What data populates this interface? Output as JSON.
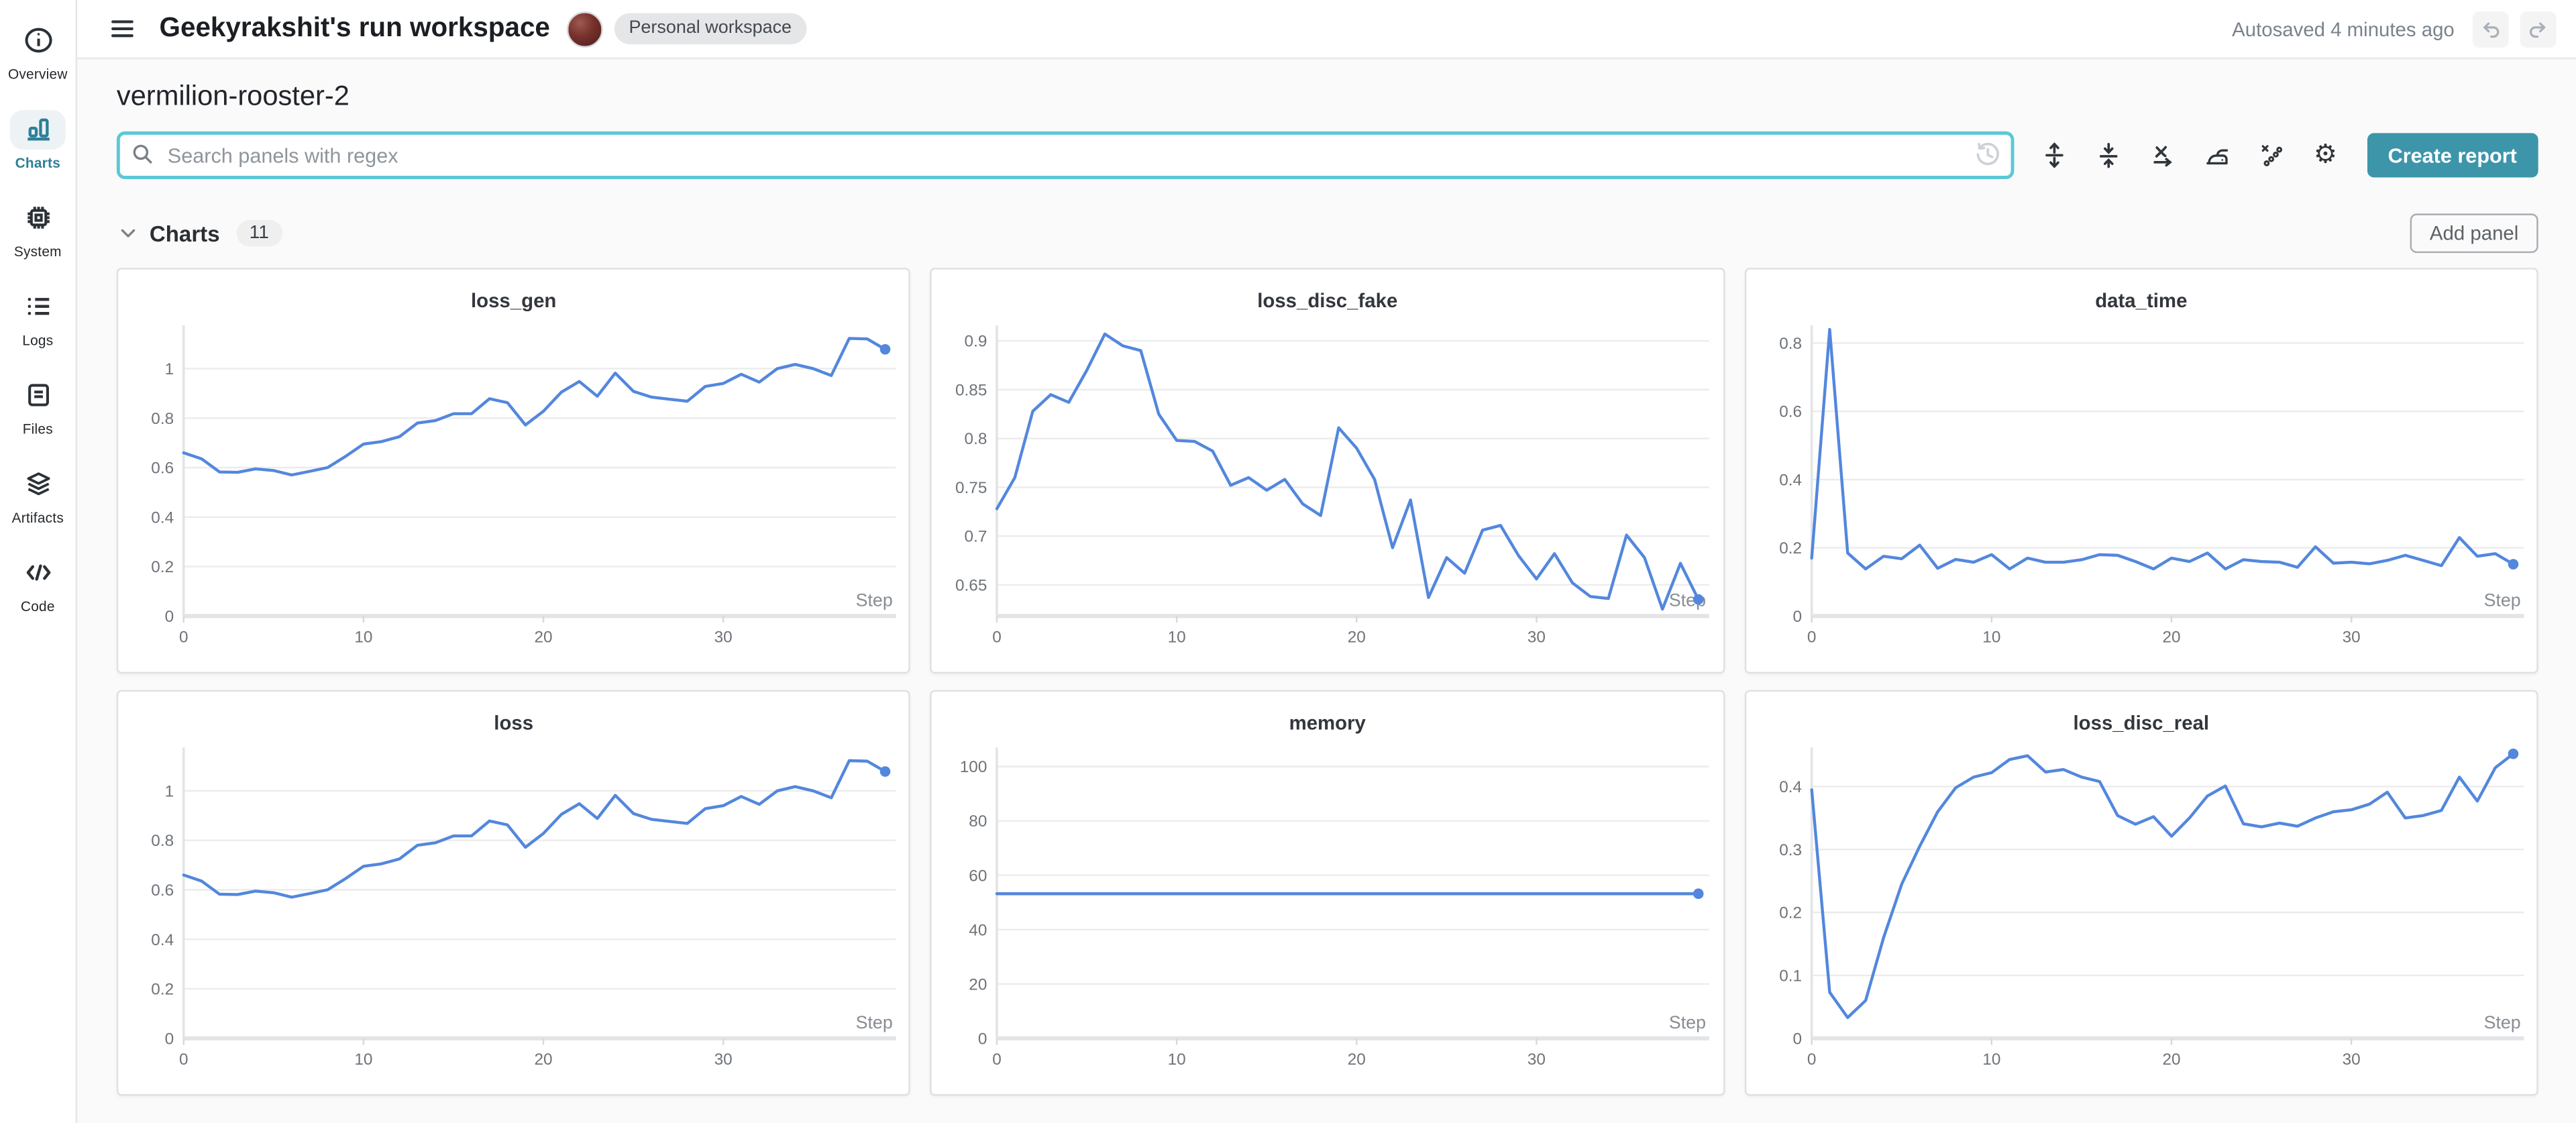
{
  "header": {
    "title": "Geekyrakshit's run workspace",
    "workspace_badge": "Personal workspace",
    "autosave_status": "Autosaved 4 minutes ago"
  },
  "sidebar": {
    "items": [
      {
        "label": "Overview",
        "icon": "info-icon",
        "active": false
      },
      {
        "label": "Charts",
        "icon": "bar-chart-icon",
        "active": true
      },
      {
        "label": "System",
        "icon": "cpu-chip-icon",
        "active": false
      },
      {
        "label": "Logs",
        "icon": "list-icon",
        "active": false
      },
      {
        "label": "Files",
        "icon": "document-icon",
        "active": false
      },
      {
        "label": "Artifacts",
        "icon": "layers-icon",
        "active": false
      },
      {
        "label": "Code",
        "icon": "code-icon",
        "active": false
      }
    ]
  },
  "run": {
    "name": "vermilion-rooster-2"
  },
  "search": {
    "placeholder": "Search panels with regex",
    "history_icon": "clock-history-icon"
  },
  "toolbar": {
    "icons": [
      "expand-vertical-icon",
      "collapse-vertical-icon",
      "x-axis-icon",
      "smoothing-iron-icon",
      "outliers-icon",
      "settings-gear-icon"
    ],
    "create_report_label": "Create report"
  },
  "charts_section": {
    "title": "Charts",
    "count": "11",
    "add_panel_label": "Add panel"
  },
  "colors": {
    "accent_teal": "#3d95aa",
    "focus_teal": "#5bc8d5",
    "line_blue": "#5387dd",
    "active_nav_teal": "#2d7f98"
  },
  "chart_data": [
    {
      "type": "line",
      "title": "loss_gen",
      "xlabel": "Step",
      "xlim": [
        0,
        39.6
      ],
      "xstep": 1,
      "ylim": [
        0,
        1.175
      ],
      "xticks": [
        {
          "v": 0,
          "l": "0"
        },
        {
          "v": 10,
          "l": "10"
        },
        {
          "v": 20,
          "l": "20"
        },
        {
          "v": 30,
          "l": "30"
        }
      ],
      "yticks": [
        {
          "v": 0,
          "l": "0"
        },
        {
          "v": 0.2,
          "l": "0.2"
        },
        {
          "v": 0.4,
          "l": "0.4"
        },
        {
          "v": 0.6,
          "l": "0.6"
        },
        {
          "v": 0.8,
          "l": "0.8"
        },
        {
          "v": 1,
          "l": "1"
        }
      ],
      "values": [
        0.66,
        0.635,
        0.582,
        0.581,
        0.595,
        0.588,
        0.57,
        0.585,
        0.6,
        0.645,
        0.695,
        0.705,
        0.725,
        0.78,
        0.79,
        0.818,
        0.818,
        0.878,
        0.862,
        0.772,
        0.828,
        0.905,
        0.948,
        0.888,
        0.982,
        0.908,
        0.885,
        0.876,
        0.868,
        0.928,
        0.94,
        0.977,
        0.945,
        1.0,
        1.017,
        1.0,
        0.972,
        1.122,
        1.12,
        1.078
      ]
    },
    {
      "type": "line",
      "title": "loss_disc_fake",
      "xlabel": "Step",
      "xlim": [
        0,
        39.6
      ],
      "xstep": 1,
      "ylim": [
        0.618,
        0.916
      ],
      "xticks": [
        {
          "v": 0,
          "l": "0"
        },
        {
          "v": 10,
          "l": "10"
        },
        {
          "v": 20,
          "l": "20"
        },
        {
          "v": 30,
          "l": "30"
        }
      ],
      "yticks": [
        {
          "v": 0.65,
          "l": "0.65"
        },
        {
          "v": 0.7,
          "l": "0.7"
        },
        {
          "v": 0.75,
          "l": "0.75"
        },
        {
          "v": 0.8,
          "l": "0.8"
        },
        {
          "v": 0.85,
          "l": "0.85"
        },
        {
          "v": 0.9,
          "l": "0.9"
        }
      ],
      "values": [
        0.728,
        0.76,
        0.828,
        0.845,
        0.837,
        0.87,
        0.907,
        0.895,
        0.89,
        0.825,
        0.798,
        0.797,
        0.787,
        0.752,
        0.76,
        0.747,
        0.758,
        0.733,
        0.721,
        0.811,
        0.79,
        0.758,
        0.688,
        0.737,
        0.637,
        0.678,
        0.662,
        0.706,
        0.711,
        0.68,
        0.656,
        0.682,
        0.652,
        0.638,
        0.636,
        0.701,
        0.678,
        0.625,
        0.672,
        0.635
      ]
    },
    {
      "type": "line",
      "title": "data_time",
      "xlabel": "Step",
      "xlim": [
        0,
        39.6
      ],
      "xstep": 1,
      "ylim": [
        0,
        0.852
      ],
      "xticks": [
        {
          "v": 0,
          "l": "0"
        },
        {
          "v": 10,
          "l": "10"
        },
        {
          "v": 20,
          "l": "20"
        },
        {
          "v": 30,
          "l": "30"
        }
      ],
      "yticks": [
        {
          "v": 0,
          "l": "0"
        },
        {
          "v": 0.2,
          "l": "0.2"
        },
        {
          "v": 0.4,
          "l": "0.4"
        },
        {
          "v": 0.6,
          "l": "0.6"
        },
        {
          "v": 0.8,
          "l": "0.8"
        }
      ],
      "values": [
        0.17,
        0.84,
        0.185,
        0.138,
        0.175,
        0.168,
        0.208,
        0.14,
        0.166,
        0.158,
        0.18,
        0.138,
        0.17,
        0.158,
        0.158,
        0.165,
        0.18,
        0.178,
        0.16,
        0.138,
        0.17,
        0.16,
        0.185,
        0.138,
        0.165,
        0.16,
        0.158,
        0.143,
        0.203,
        0.155,
        0.158,
        0.153,
        0.163,
        0.178,
        0.163,
        0.148,
        0.23,
        0.175,
        0.183,
        0.152
      ]
    },
    {
      "type": "line",
      "title": "loss",
      "xlabel": "Step",
      "xlim": [
        0,
        39.6
      ],
      "xstep": 1,
      "ylim": [
        0,
        1.175
      ],
      "xticks": [
        {
          "v": 0,
          "l": "0"
        },
        {
          "v": 10,
          "l": "10"
        },
        {
          "v": 20,
          "l": "20"
        },
        {
          "v": 30,
          "l": "30"
        }
      ],
      "yticks": [
        {
          "v": 0,
          "l": "0"
        },
        {
          "v": 0.2,
          "l": "0.2"
        },
        {
          "v": 0.4,
          "l": "0.4"
        },
        {
          "v": 0.6,
          "l": "0.6"
        },
        {
          "v": 0.8,
          "l": "0.8"
        },
        {
          "v": 1,
          "l": "1"
        }
      ],
      "values": [
        0.66,
        0.635,
        0.582,
        0.581,
        0.595,
        0.588,
        0.57,
        0.585,
        0.6,
        0.645,
        0.695,
        0.705,
        0.725,
        0.78,
        0.79,
        0.818,
        0.818,
        0.878,
        0.862,
        0.772,
        0.828,
        0.905,
        0.948,
        0.888,
        0.982,
        0.908,
        0.885,
        0.876,
        0.868,
        0.928,
        0.94,
        0.977,
        0.945,
        1.0,
        1.017,
        1.0,
        0.972,
        1.122,
        1.12,
        1.078
      ]
    },
    {
      "type": "line",
      "title": "memory",
      "xlabel": "Step",
      "xlim": [
        0,
        39.6
      ],
      "xstep": 1,
      "ylim": [
        0,
        107
      ],
      "xticks": [
        {
          "v": 0,
          "l": "0"
        },
        {
          "v": 10,
          "l": "10"
        },
        {
          "v": 20,
          "l": "20"
        },
        {
          "v": 30,
          "l": "30"
        }
      ],
      "yticks": [
        {
          "v": 0,
          "l": "0"
        },
        {
          "v": 20,
          "l": "20"
        },
        {
          "v": 40,
          "l": "40"
        },
        {
          "v": 60,
          "l": "60"
        },
        {
          "v": 80,
          "l": "80"
        },
        {
          "v": 100,
          "l": "100"
        }
      ],
      "values": [
        53.2,
        53.2,
        53.2,
        53.2,
        53.2,
        53.2,
        53.2,
        53.2,
        53.2,
        53.2,
        53.2,
        53.2,
        53.2,
        53.2,
        53.2,
        53.2,
        53.2,
        53.2,
        53.2,
        53.2,
        53.2,
        53.2,
        53.2,
        53.2,
        53.2,
        53.2,
        53.2,
        53.2,
        53.2,
        53.2,
        53.2,
        53.2,
        53.2,
        53.2,
        53.2,
        53.2,
        53.2,
        53.2,
        53.2,
        53.2
      ]
    },
    {
      "type": "line",
      "title": "loss_disc_real",
      "xlabel": "Step",
      "xlim": [
        0,
        39.6
      ],
      "xstep": 1,
      "ylim": [
        0,
        0.462
      ],
      "xticks": [
        {
          "v": 0,
          "l": "0"
        },
        {
          "v": 10,
          "l": "10"
        },
        {
          "v": 20,
          "l": "20"
        },
        {
          "v": 30,
          "l": "30"
        }
      ],
      "yticks": [
        {
          "v": 0,
          "l": "0"
        },
        {
          "v": 0.1,
          "l": "0.1"
        },
        {
          "v": 0.2,
          "l": "0.2"
        },
        {
          "v": 0.3,
          "l": "0.3"
        },
        {
          "v": 0.4,
          "l": "0.4"
        }
      ],
      "values": [
        0.395,
        0.073,
        0.033,
        0.06,
        0.16,
        0.245,
        0.305,
        0.36,
        0.398,
        0.415,
        0.422,
        0.443,
        0.449,
        0.423,
        0.427,
        0.415,
        0.408,
        0.354,
        0.34,
        0.352,
        0.321,
        0.35,
        0.385,
        0.401,
        0.341,
        0.336,
        0.342,
        0.337,
        0.35,
        0.36,
        0.363,
        0.372,
        0.391,
        0.35,
        0.354,
        0.362,
        0.415,
        0.377,
        0.43,
        0.452
      ]
    }
  ]
}
